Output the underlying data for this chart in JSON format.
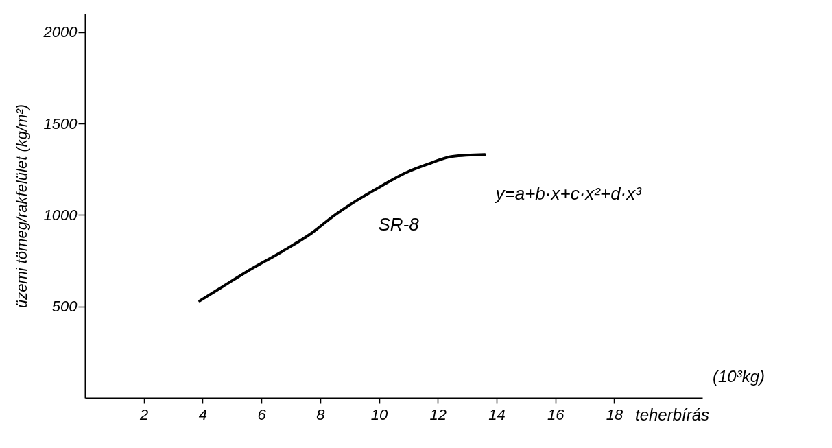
{
  "chart_data": {
    "type": "line",
    "xlabel": "teherbírás",
    "ylabel": "üzemi tömeg/rakfelület (kg/m²)",
    "x": [
      3.9,
      4.7,
      5.5,
      6.7,
      7.7,
      8.5,
      9.3,
      10.1,
      10.9,
      11.7,
      12.5,
      13.6
    ],
    "series": [
      {
        "color": "#000000",
        "values": [
          530,
          610,
          690,
          800,
          900,
          1000,
          1085,
          1160,
          1230,
          1280,
          1320,
          1330
        ]
      }
    ],
    "xlim": [
      0,
      21
    ],
    "xticks": [
      2,
      4,
      6,
      8,
      10,
      12,
      14,
      16,
      18
    ],
    "ylim": [
      0,
      2100
    ],
    "yticks": [
      500,
      1000,
      1500,
      2000
    ],
    "grid": false,
    "marker": "none",
    "line_style": "solid",
    "annotations": [
      "SR-8",
      "y=a+b·x+c·x²+d·x³",
      "(10³kg)"
    ]
  }
}
